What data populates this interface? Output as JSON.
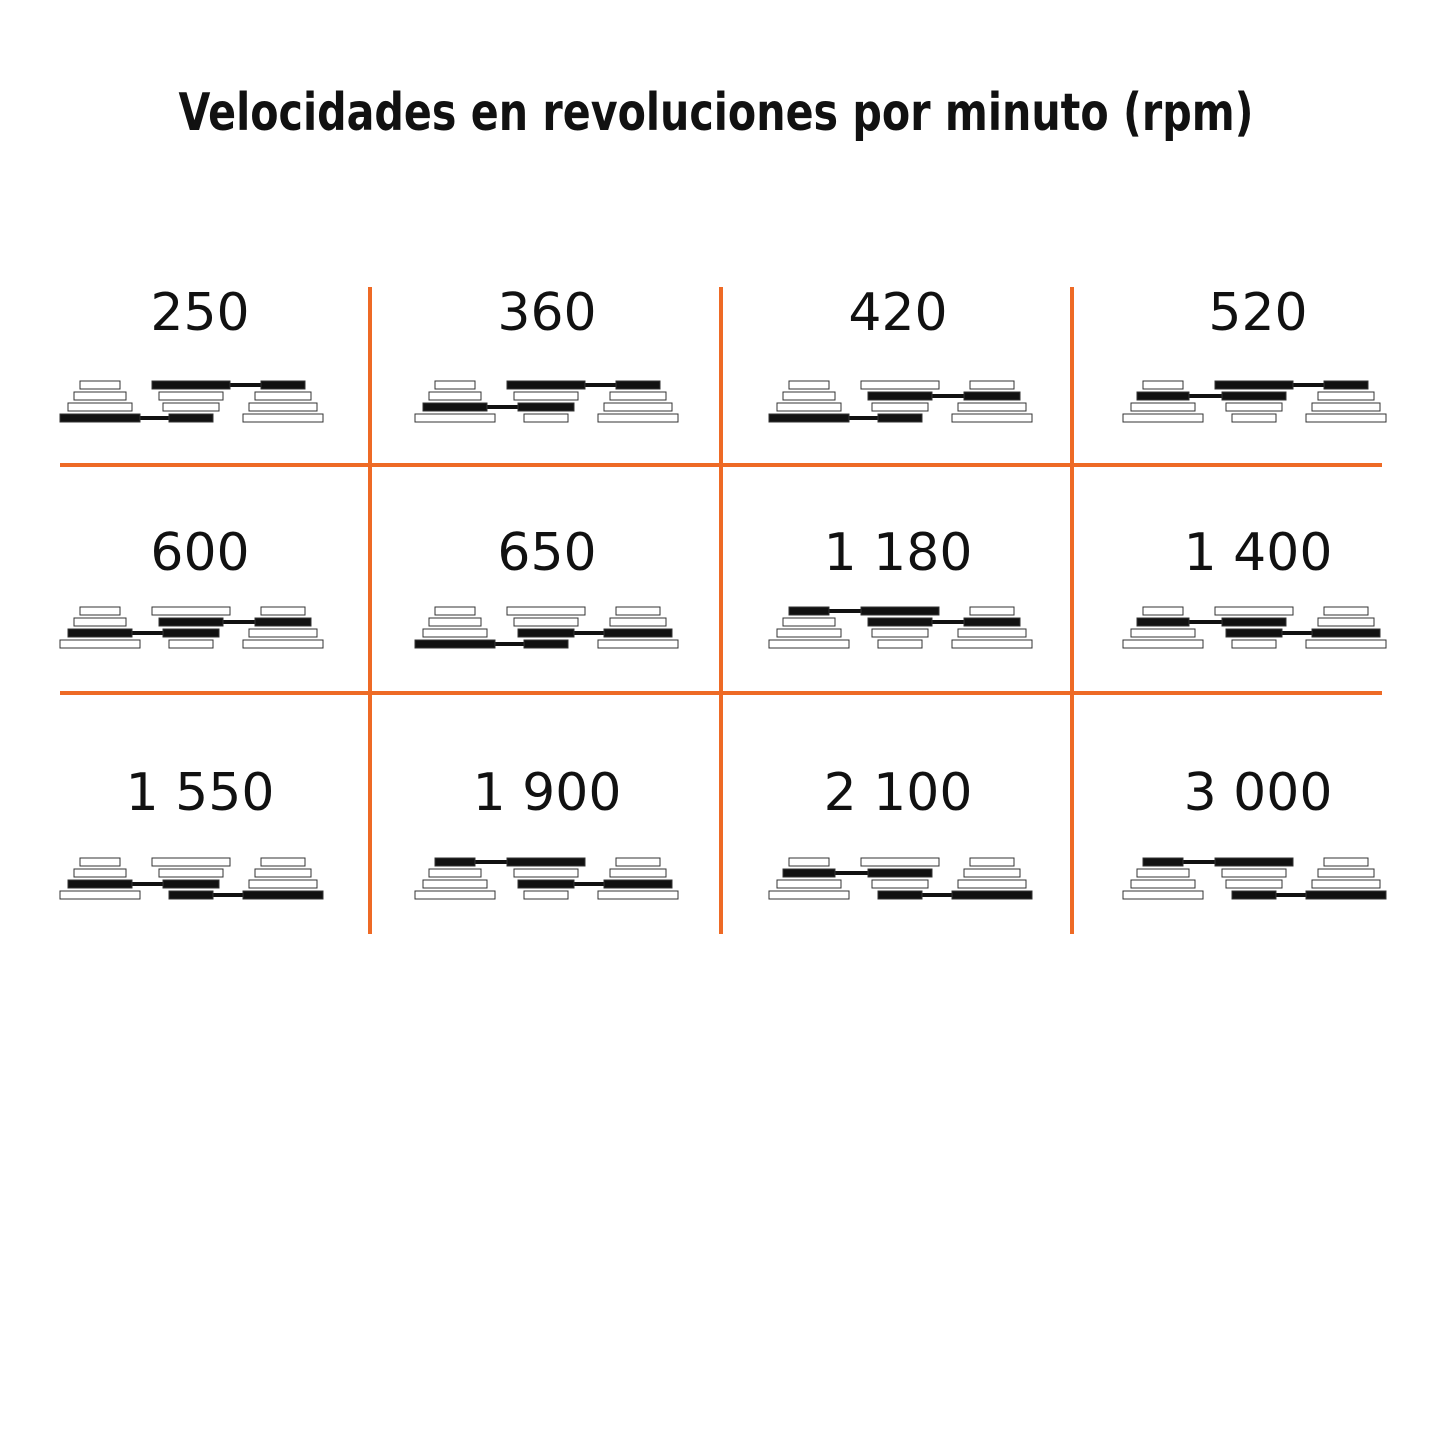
{
  "title": "Velocidades en revoluciones por minuto (rpm)",
  "cells": [
    {
      "speed": "250"
    },
    {
      "speed": "360"
    },
    {
      "speed": "420"
    },
    {
      "speed": "520"
    },
    {
      "speed": "600"
    },
    {
      "speed": "650"
    },
    {
      "speed": "1 180"
    },
    {
      "speed": "1 400"
    },
    {
      "speed": "1 550"
    },
    {
      "speed": "1 900"
    },
    {
      "speed": "2 100"
    },
    {
      "speed": "3 000"
    }
  ]
}
